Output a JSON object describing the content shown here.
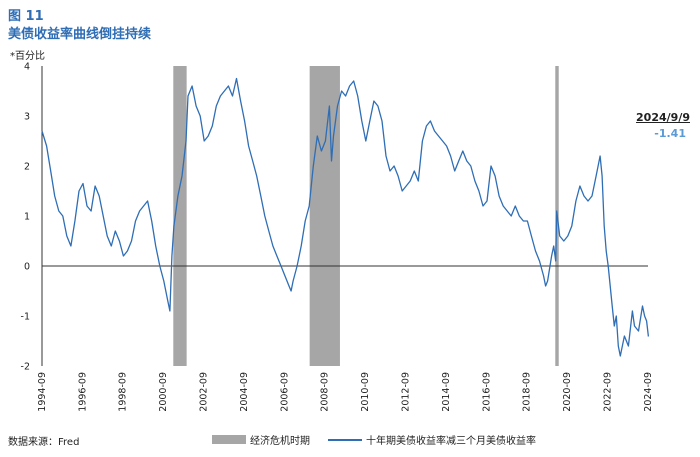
{
  "figure_label": "图 11",
  "title": "美债收益率曲线倒挂持续",
  "unit_label": "*百分比",
  "source": "数据来源：Fred",
  "annotation": {
    "date": "2024/9/9",
    "value": "-1.41"
  },
  "colors": {
    "series": "#2f6eb5",
    "recession": "#a6a6a6",
    "annotation_value": "#5b9bd5"
  },
  "chart_data": {
    "type": "line",
    "ylim": [
      -2,
      4
    ],
    "yticks": [
      "4",
      "3",
      "2",
      "1",
      "0",
      "-1",
      "-2"
    ],
    "xlim": [
      1994.67,
      2024.67
    ],
    "xticks": [
      "1994-09",
      "1996-09",
      "1998-09",
      "2000-09",
      "2002-09",
      "2004-09",
      "2006-09",
      "2008-09",
      "2010-09",
      "2012-09",
      "2014-09",
      "2016-09",
      "2018-09",
      "2020-09",
      "2022-09",
      "2024-09"
    ],
    "legend": {
      "recession": "经济危机时期",
      "series": "十年期美债收益率减三个月美债收益率"
    },
    "recessions": [
      [
        2001.17,
        2001.83
      ],
      [
        2007.92,
        2009.42
      ],
      [
        2020.08,
        2020.25
      ]
    ],
    "series": [
      {
        "name": "十年期美债收益率减三个月美债收益率",
        "points": [
          [
            1994.67,
            2.7
          ],
          [
            1994.9,
            2.4
          ],
          [
            1995.1,
            1.9
          ],
          [
            1995.3,
            1.4
          ],
          [
            1995.5,
            1.1
          ],
          [
            1995.7,
            1.0
          ],
          [
            1995.9,
            0.6
          ],
          [
            1996.1,
            0.4
          ],
          [
            1996.3,
            0.9
          ],
          [
            1996.5,
            1.5
          ],
          [
            1996.7,
            1.65
          ],
          [
            1996.9,
            1.2
          ],
          [
            1997.1,
            1.1
          ],
          [
            1997.3,
            1.6
          ],
          [
            1997.5,
            1.4
          ],
          [
            1997.7,
            1.0
          ],
          [
            1997.9,
            0.6
          ],
          [
            1998.1,
            0.4
          ],
          [
            1998.3,
            0.7
          ],
          [
            1998.5,
            0.5
          ],
          [
            1998.7,
            0.2
          ],
          [
            1998.9,
            0.3
          ],
          [
            1999.1,
            0.5
          ],
          [
            1999.3,
            0.9
          ],
          [
            1999.5,
            1.1
          ],
          [
            1999.7,
            1.2
          ],
          [
            1999.9,
            1.3
          ],
          [
            2000.1,
            0.9
          ],
          [
            2000.3,
            0.4
          ],
          [
            2000.5,
            0.0
          ],
          [
            2000.7,
            -0.3
          ],
          [
            2000.9,
            -0.7
          ],
          [
            2001.0,
            -0.9
          ],
          [
            2001.1,
            0.2
          ],
          [
            2001.2,
            0.8
          ],
          [
            2001.4,
            1.4
          ],
          [
            2001.6,
            1.8
          ],
          [
            2001.8,
            2.5
          ],
          [
            2001.9,
            3.4
          ],
          [
            2002.1,
            3.6
          ],
          [
            2002.3,
            3.2
          ],
          [
            2002.5,
            3.0
          ],
          [
            2002.7,
            2.5
          ],
          [
            2002.9,
            2.6
          ],
          [
            2003.1,
            2.8
          ],
          [
            2003.3,
            3.2
          ],
          [
            2003.5,
            3.4
          ],
          [
            2003.7,
            3.5
          ],
          [
            2003.9,
            3.6
          ],
          [
            2004.1,
            3.4
          ],
          [
            2004.3,
            3.75
          ],
          [
            2004.5,
            3.3
          ],
          [
            2004.7,
            2.9
          ],
          [
            2004.9,
            2.4
          ],
          [
            2005.1,
            2.1
          ],
          [
            2005.3,
            1.8
          ],
          [
            2005.5,
            1.4
          ],
          [
            2005.7,
            1.0
          ],
          [
            2005.9,
            0.7
          ],
          [
            2006.1,
            0.4
          ],
          [
            2006.3,
            0.2
          ],
          [
            2006.5,
            0.0
          ],
          [
            2006.7,
            -0.2
          ],
          [
            2006.9,
            -0.4
          ],
          [
            2007.0,
            -0.5
          ],
          [
            2007.1,
            -0.3
          ],
          [
            2007.3,
            0.0
          ],
          [
            2007.5,
            0.4
          ],
          [
            2007.7,
            0.9
          ],
          [
            2007.9,
            1.2
          ],
          [
            2008.1,
            2.0
          ],
          [
            2008.3,
            2.6
          ],
          [
            2008.5,
            2.3
          ],
          [
            2008.7,
            2.5
          ],
          [
            2008.9,
            3.2
          ],
          [
            2009.0,
            2.1
          ],
          [
            2009.1,
            2.6
          ],
          [
            2009.3,
            3.2
          ],
          [
            2009.5,
            3.5
          ],
          [
            2009.7,
            3.4
          ],
          [
            2009.9,
            3.6
          ],
          [
            2010.1,
            3.7
          ],
          [
            2010.3,
            3.4
          ],
          [
            2010.5,
            2.9
          ],
          [
            2010.7,
            2.5
          ],
          [
            2010.9,
            2.9
          ],
          [
            2011.1,
            3.3
          ],
          [
            2011.3,
            3.2
          ],
          [
            2011.5,
            2.9
          ],
          [
            2011.7,
            2.2
          ],
          [
            2011.9,
            1.9
          ],
          [
            2012.1,
            2.0
          ],
          [
            2012.3,
            1.8
          ],
          [
            2012.5,
            1.5
          ],
          [
            2012.7,
            1.6
          ],
          [
            2012.9,
            1.7
          ],
          [
            2013.1,
            1.9
          ],
          [
            2013.3,
            1.7
          ],
          [
            2013.5,
            2.5
          ],
          [
            2013.7,
            2.8
          ],
          [
            2013.9,
            2.9
          ],
          [
            2014.1,
            2.7
          ],
          [
            2014.3,
            2.6
          ],
          [
            2014.5,
            2.5
          ],
          [
            2014.7,
            2.4
          ],
          [
            2014.9,
            2.2
          ],
          [
            2015.1,
            1.9
          ],
          [
            2015.3,
            2.1
          ],
          [
            2015.5,
            2.3
          ],
          [
            2015.7,
            2.1
          ],
          [
            2015.9,
            2.0
          ],
          [
            2016.1,
            1.7
          ],
          [
            2016.3,
            1.5
          ],
          [
            2016.5,
            1.2
          ],
          [
            2016.7,
            1.3
          ],
          [
            2016.9,
            2.0
          ],
          [
            2017.1,
            1.8
          ],
          [
            2017.3,
            1.4
          ],
          [
            2017.5,
            1.2
          ],
          [
            2017.7,
            1.1
          ],
          [
            2017.9,
            1.0
          ],
          [
            2018.1,
            1.2
          ],
          [
            2018.3,
            1.0
          ],
          [
            2018.5,
            0.9
          ],
          [
            2018.7,
            0.9
          ],
          [
            2018.9,
            0.6
          ],
          [
            2019.1,
            0.3
          ],
          [
            2019.3,
            0.1
          ],
          [
            2019.5,
            -0.2
          ],
          [
            2019.6,
            -0.4
          ],
          [
            2019.7,
            -0.3
          ],
          [
            2019.9,
            0.2
          ],
          [
            2020.0,
            0.4
          ],
          [
            2020.1,
            0.1
          ],
          [
            2020.15,
            1.1
          ],
          [
            2020.3,
            0.6
          ],
          [
            2020.5,
            0.5
          ],
          [
            2020.7,
            0.6
          ],
          [
            2020.9,
            0.8
          ],
          [
            2021.1,
            1.3
          ],
          [
            2021.3,
            1.6
          ],
          [
            2021.5,
            1.4
          ],
          [
            2021.7,
            1.3
          ],
          [
            2021.9,
            1.4
          ],
          [
            2022.1,
            1.8
          ],
          [
            2022.3,
            2.2
          ],
          [
            2022.4,
            1.8
          ],
          [
            2022.5,
            0.8
          ],
          [
            2022.6,
            0.3
          ],
          [
            2022.7,
            0.0
          ],
          [
            2022.8,
            -0.4
          ],
          [
            2022.9,
            -0.8
          ],
          [
            2023.0,
            -1.2
          ],
          [
            2023.1,
            -1.0
          ],
          [
            2023.2,
            -1.6
          ],
          [
            2023.3,
            -1.8
          ],
          [
            2023.5,
            -1.4
          ],
          [
            2023.7,
            -1.6
          ],
          [
            2023.9,
            -0.9
          ],
          [
            2024.0,
            -1.2
          ],
          [
            2024.2,
            -1.3
          ],
          [
            2024.4,
            -0.8
          ],
          [
            2024.5,
            -1.0
          ],
          [
            2024.6,
            -1.1
          ],
          [
            2024.69,
            -1.41
          ]
        ]
      }
    ]
  }
}
